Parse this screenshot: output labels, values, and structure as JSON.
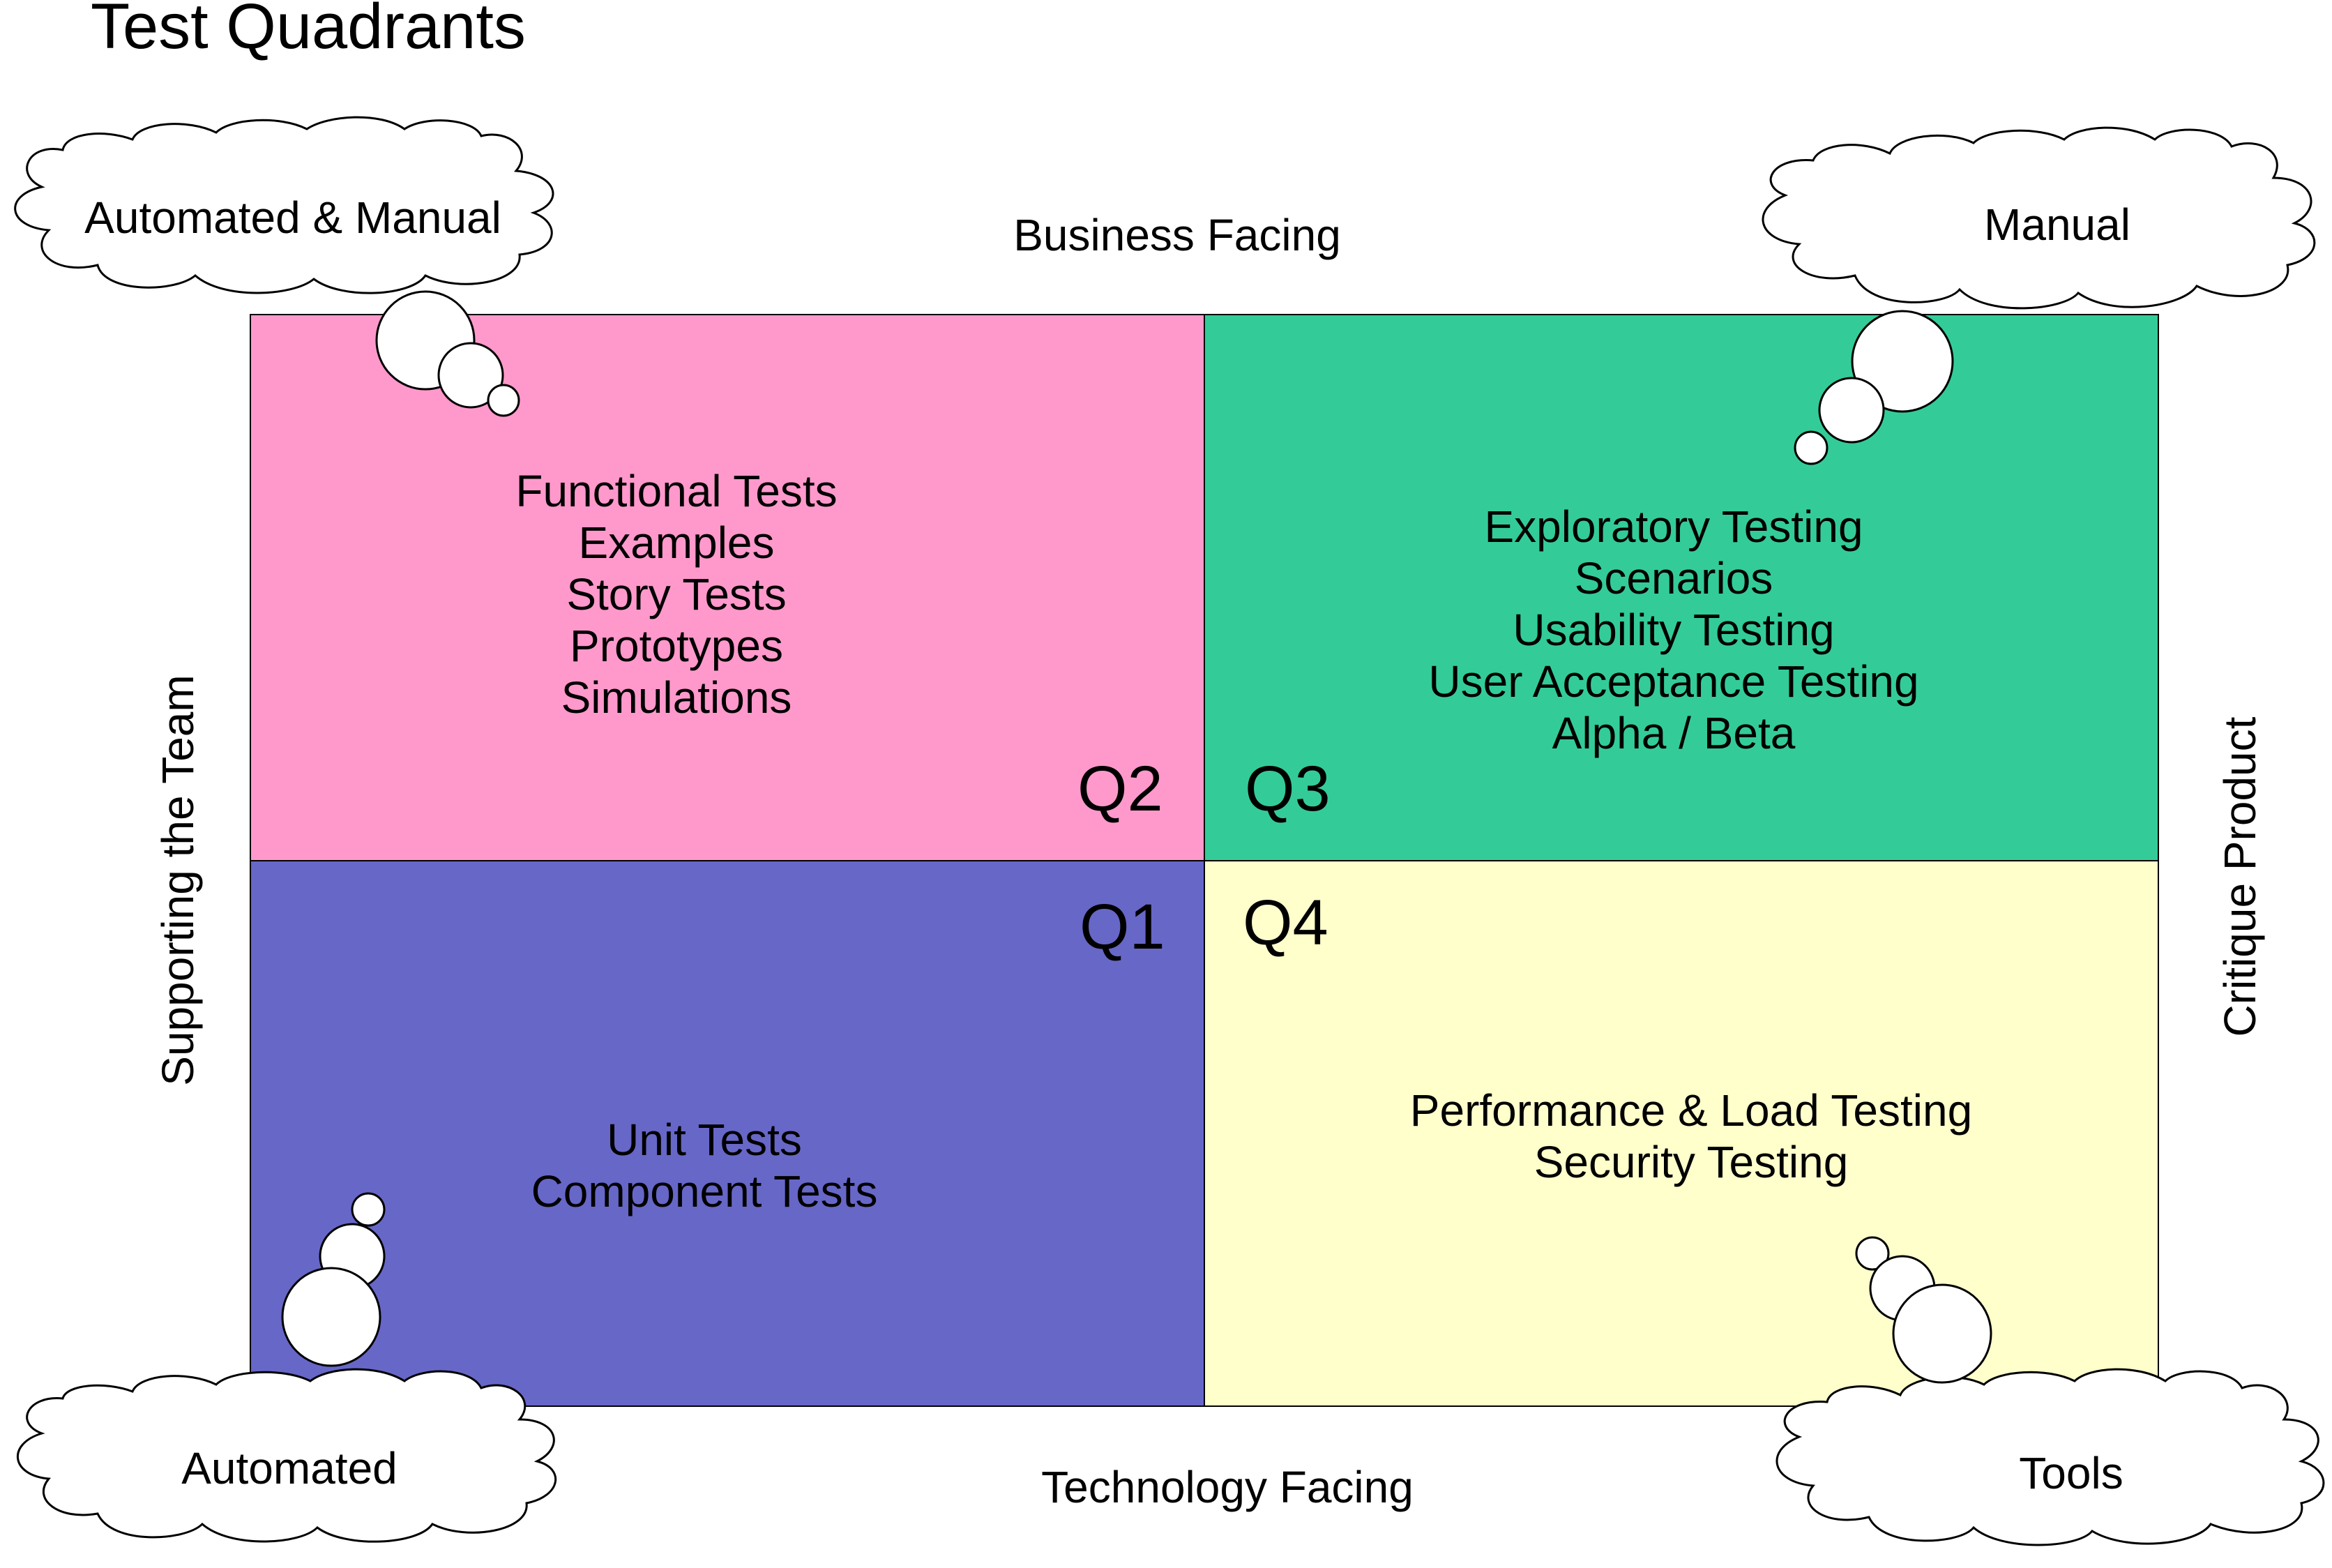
{
  "title": "Test Quadrants",
  "axes": {
    "top": "Business Facing",
    "bottom": "Technology Facing",
    "left": "Supporting the Team",
    "right": "Critique Product"
  },
  "quadrants": [
    {
      "id": "Q1",
      "label": "Q1",
      "color": "#6767c8",
      "items": [
        "Unit Tests",
        "Component Tests"
      ]
    },
    {
      "id": "Q2",
      "label": "Q2",
      "color": "#ff99cc",
      "items": [
        "Functional Tests",
        "Examples",
        "Story Tests",
        "Prototypes",
        "Simulations"
      ]
    },
    {
      "id": "Q3",
      "label": "Q3",
      "color": "#33cc99",
      "items": [
        "Exploratory Testing",
        "Scenarios",
        "Usability Testing",
        "User Acceptance Testing",
        "Alpha / Beta"
      ]
    },
    {
      "id": "Q4",
      "label": "Q4",
      "color": "#ffffcc",
      "items": [
        "Performance & Load Testing",
        "Security Testing"
      ]
    }
  ],
  "clouds": {
    "top_left": "Automated & Manual",
    "top_right": "Manual",
    "bottom_left": "Automated",
    "bottom_right": "Tools"
  }
}
